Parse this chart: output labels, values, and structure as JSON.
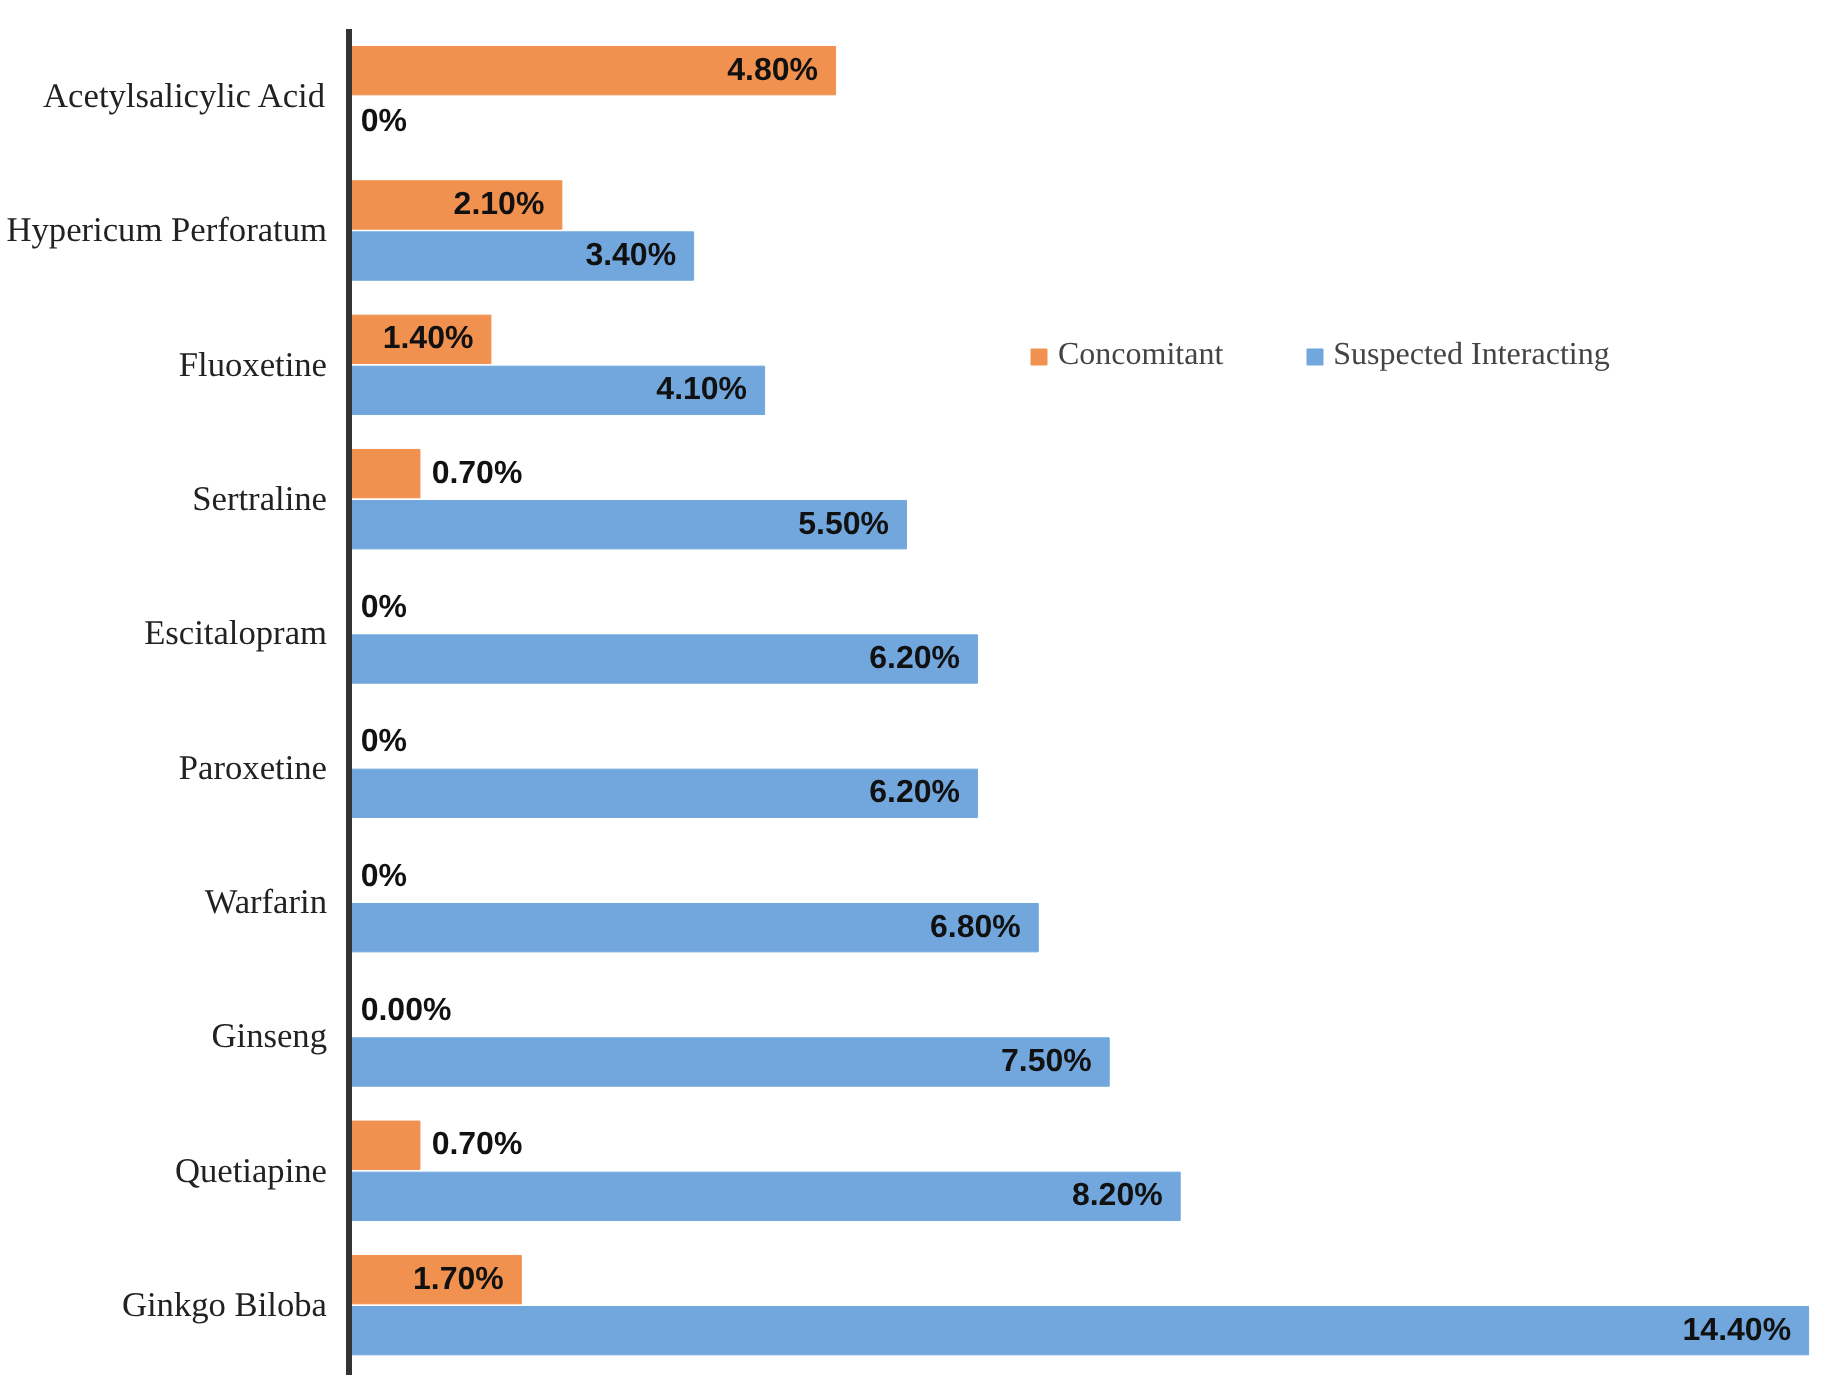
{
  "chart_data": {
    "type": "bar",
    "orientation": "horizontal",
    "categories": [
      "Acetylsalicylic Acid",
      "Hypericum Perforatum",
      "Fluoxetine",
      "Sertraline",
      "Escitalopram",
      "Paroxetine",
      "Warfarin",
      "Ginseng",
      "Quetiapine",
      "Ginkgo Biloba"
    ],
    "series": [
      {
        "name": "Concomitant",
        "color": "#f0914f",
        "values": [
          4.8,
          2.1,
          1.4,
          0.7,
          0,
          0,
          0,
          0,
          0.7,
          1.7
        ],
        "value_labels": [
          "4.80%",
          "2.10%",
          "1.40%",
          "0.70%",
          "0%",
          "0%",
          "0%",
          "0.00%",
          "0.70%",
          "1.70%"
        ]
      },
      {
        "name": "Suspected Interacting",
        "color": "#71a7dc",
        "values": [
          0,
          3.4,
          4.1,
          5.5,
          6.2,
          6.2,
          6.8,
          7.5,
          8.2,
          14.4
        ],
        "value_labels": [
          "0%",
          "3.40%",
          "4.10%",
          "5.50%",
          "6.20%",
          "6.20%",
          "6.80%",
          "7.50%",
          "8.20%",
          "14.40%"
        ]
      }
    ],
    "legend": "top right",
    "grid": false
  }
}
